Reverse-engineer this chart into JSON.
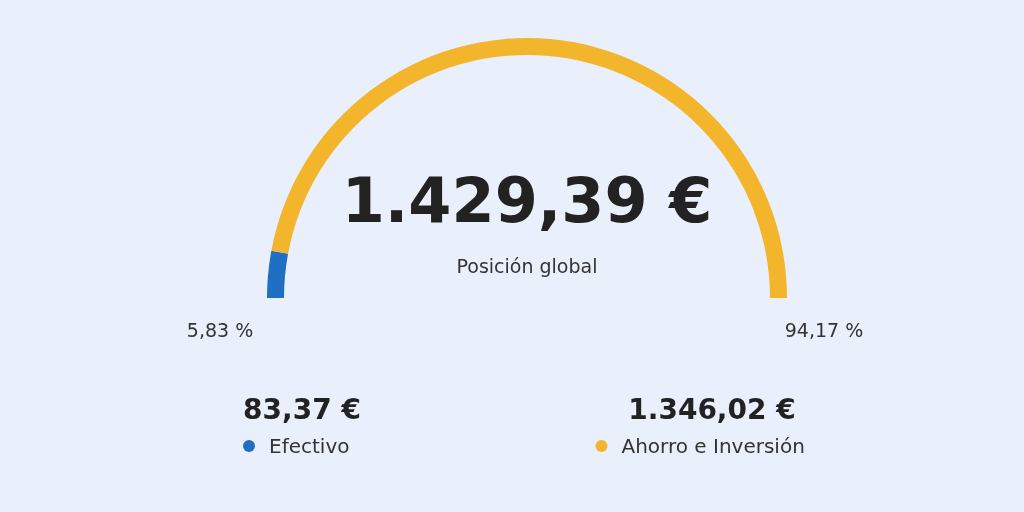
{
  "chart_data": {
    "type": "donut",
    "title": "1.429,39 €",
    "subtitle": "Posición global",
    "categories": [
      "Efectivo",
      "Ahorro e Inversión"
    ],
    "values": [
      83.37,
      1346.02
    ],
    "colors": [
      "#1f6fc5",
      "#f2b52c"
    ],
    "value_labels": [
      "83,37 €",
      "1.346,02 €"
    ],
    "annotations": [
      "5,83 %",
      "94,17 %"
    ],
    "legend": "bottom"
  }
}
